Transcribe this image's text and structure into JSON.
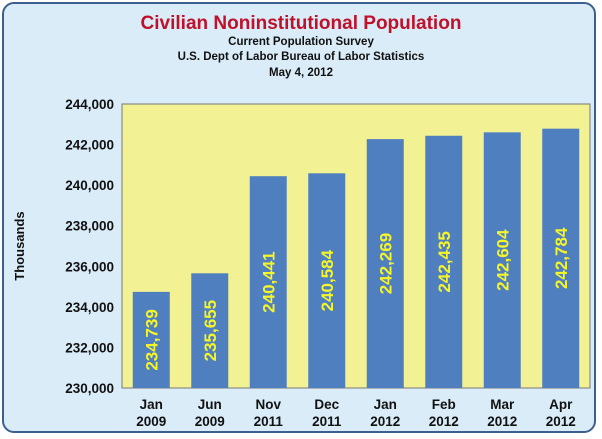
{
  "colors": {
    "title": "#c0102a",
    "background": "#d9ecf8",
    "plot_area": "#f2f294",
    "bar": "#4f7fbf",
    "data_label": "#f5f528",
    "border": "#3d5f8f"
  },
  "chart_data": {
    "type": "bar",
    "title": "Civilian Noninstitutional Population",
    "subtitle": [
      "Current Population Survey",
      "U.S. Dept of Labor Bureau of Labor Statistics",
      "May 4, 2012"
    ],
    "xlabel": "",
    "ylabel": "Thousands",
    "ylim": [
      230000,
      244000
    ],
    "yticks": [
      244000,
      242000,
      240000,
      238000,
      236000,
      234000,
      232000,
      230000
    ],
    "ytick_labels": [
      "244,000",
      "242,000",
      "240,000",
      "238,000",
      "236,000",
      "234,000",
      "232,000",
      "230,000"
    ],
    "categories": [
      [
        "Jan",
        "2009"
      ],
      [
        "Jun",
        "2009"
      ],
      [
        "Nov",
        "2011"
      ],
      [
        "Dec",
        "2011"
      ],
      [
        "Jan",
        "2012"
      ],
      [
        "Feb",
        "2012"
      ],
      [
        "Mar",
        "2012"
      ],
      [
        "Apr",
        "2012"
      ]
    ],
    "values": [
      234739,
      235655,
      240441,
      240584,
      242269,
      242435,
      242604,
      242784
    ],
    "data_labels": [
      "234,739",
      "235,655",
      "240,441",
      "240,584",
      "242,269",
      "242,435",
      "242,604",
      "242,784"
    ],
    "grid": false,
    "legend": "none"
  }
}
